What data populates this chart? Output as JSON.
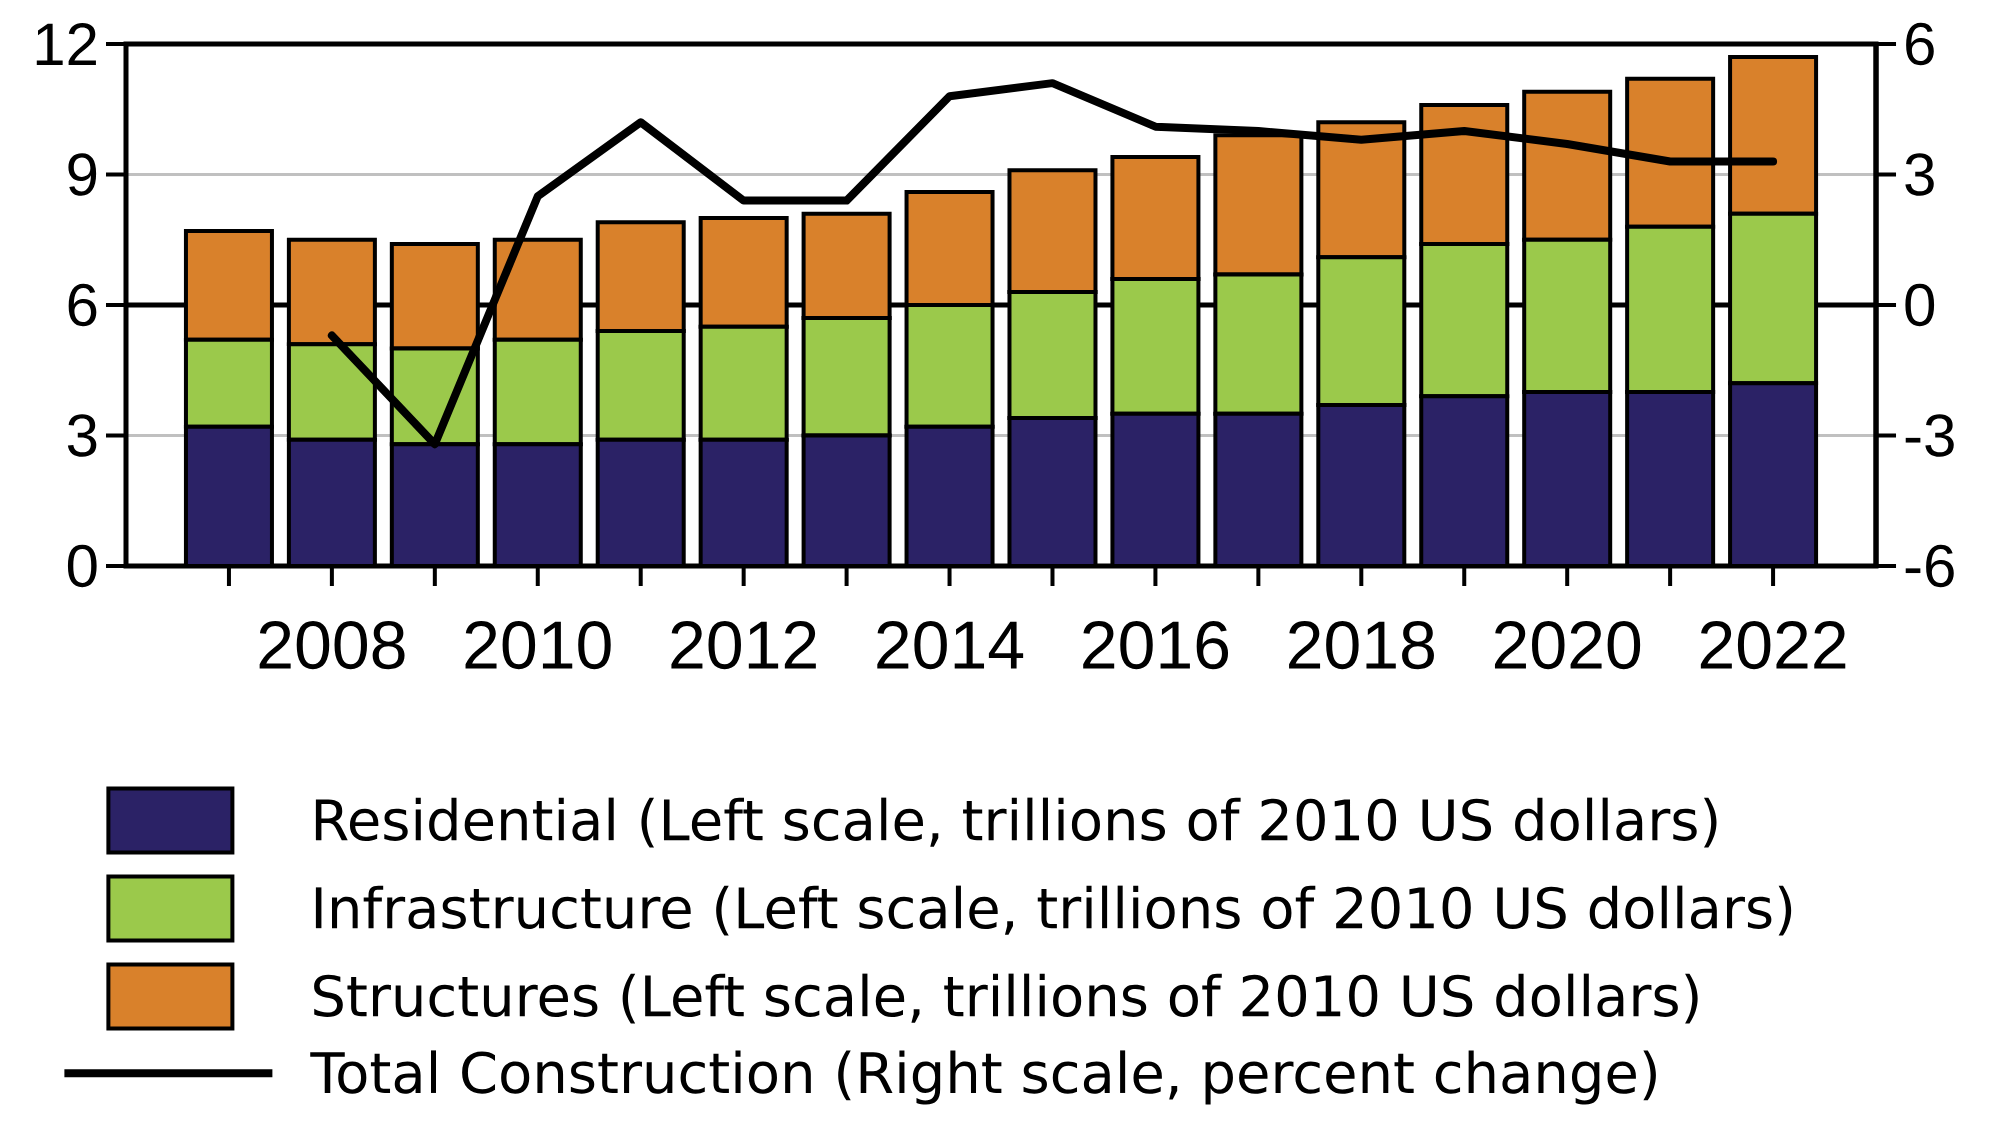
{
  "chart_data": {
    "type": "bar",
    "stacked": true,
    "categories": [
      null,
      "2008",
      null,
      "2010",
      null,
      "2012",
      null,
      "2014",
      null,
      "2016",
      null,
      "2018",
      null,
      "2020",
      null,
      "2022"
    ],
    "series": [
      {
        "name": "Residential (Left scale, trillions of 2010 US dollars)",
        "color": "#2b2266",
        "values": [
          3.2,
          2.9,
          2.8,
          2.8,
          2.9,
          2.9,
          3.0,
          3.2,
          3.4,
          3.5,
          3.5,
          3.7,
          3.9,
          4.0,
          4.0,
          4.2
        ]
      },
      {
        "name": "Infrastructure (Left scale, trillions of 2010 US dollars)",
        "color": "#9bc94b",
        "values": [
          2.0,
          2.2,
          2.2,
          2.4,
          2.5,
          2.6,
          2.7,
          2.8,
          2.9,
          3.1,
          3.2,
          3.4,
          3.5,
          3.5,
          3.8,
          3.9
        ]
      },
      {
        "name": "Structures (Left scale, trillions of 2010 US dollars)",
        "color": "#d9812b",
        "values": [
          2.5,
          2.4,
          2.4,
          2.3,
          2.5,
          2.5,
          2.4,
          2.6,
          2.8,
          2.8,
          3.2,
          3.1,
          3.2,
          3.4,
          3.4,
          3.6
        ]
      },
      {
        "name": "Total Construction (Right scale, percent change)",
        "type": "line",
        "axis": "y2",
        "color": "#000000",
        "values": [
          null,
          -0.7,
          -3.2,
          2.5,
          4.2,
          2.4,
          2.4,
          4.8,
          5.1,
          4.1,
          4.0,
          3.8,
          4.0,
          3.7,
          3.3,
          3.3
        ]
      }
    ],
    "ylim": [
      0,
      12
    ],
    "yticks": [
      0,
      3,
      6,
      9,
      12
    ],
    "y2lim": [
      -6,
      6
    ],
    "y2ticks": [
      -6,
      -3,
      0,
      3,
      6
    ],
    "grid": "y",
    "legend": "bottom",
    "ref_lines": [
      {
        "axis": "y2",
        "value": 0,
        "color": "#000000"
      }
    ]
  }
}
